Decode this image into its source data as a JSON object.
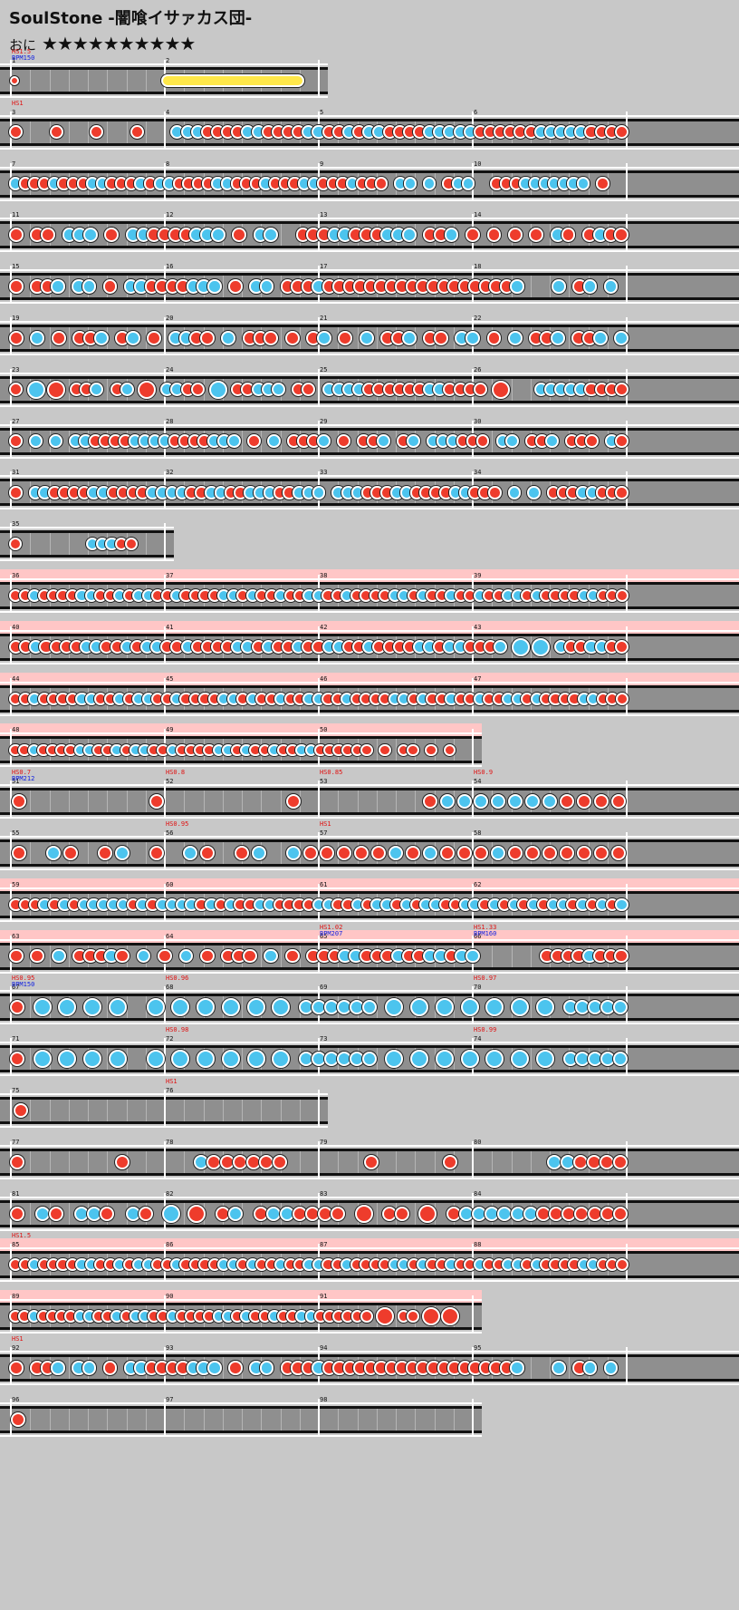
{
  "header": {
    "title": "SoulStone",
    "subtitle": "-闇喰イサァカス団-",
    "difficulty": "おに",
    "stars": "★★★★★★★★★★"
  },
  "colors": {
    "don": "#ee3c2c",
    "ka": "#4cc4ee",
    "lane": "#8f8f8f",
    "gogo": "#ffc6c6",
    "roll": "#ffe84a"
  },
  "rows": [
    {
      "measures": [
        1,
        2
      ],
      "events": [
        {
          "m": 0,
          "t": "HS1.5",
          "c": "hs"
        },
        {
          "m": 0,
          "t": "BPM150",
          "c": "bpm"
        }
      ],
      "notes": "D..........................................."
    },
    {
      "measures": [
        3,
        4,
        5,
        6
      ],
      "events": [
        {
          "m": 0,
          "t": "HS1",
          "c": "hs"
        }
      ],
      "notes": "D...D...D...D...KKKDDDDKKDDDDKKDDKDKKDDDDKKKKKDDDDDDKKKKKDDDD"
    },
    {
      "measures": [
        7,
        8,
        9,
        10
      ],
      "notes": "KDDDKDDDKKDDDKDKKDDDDKKDDDKDDDKKDDDKDDD.KK.K.DKK..DDDKKKKKKK.D.."
    },
    {
      "measures": [
        11,
        12,
        13,
        14
      ],
      "notes": "D.DD.KKK.D.KKDDDDKKK.D.KK..DDDKKDDDKKK.DDK.D.D.D.D.KD.DKDD"
    },
    {
      "measures": [
        15,
        16,
        17,
        18
      ],
      "notes": "D.DDK.KK.D.KKDDDDKKK.D.KK.DDDKDDDDDDDDDDDDDDDDDDK...K.DK.K."
    },
    {
      "measures": [
        19,
        20,
        21,
        22
      ],
      "notes": "D.K.D.DDK.DK.D.KKDD.K.DDD.D.DK.D.K.DDK.DD.KK.D.K.DDK.DDK.K"
    },
    {
      "measures": [
        23,
        24,
        25,
        26
      ],
      "notes": "D.K.D.DDK.DK.D.KKDD.K.DDKKK.DD.KKKKDDDDDDKKDDDD.D...KKKKKDDDD"
    },
    {
      "measures": [
        27,
        28,
        29,
        30
      ],
      "notes": "D.K.K.KKDDDDKKKKDDDDKKK.D.K.DDDK.D.DDK.DK.KKKDDD.KK.DDK.DDD.KD"
    },
    {
      "measures": [
        31,
        32,
        33,
        34
      ],
      "notes": "D.KKDDDDKKDDDDKKKKDDKKDDKKKDDKKK.KKKDDDKKDDDDKKDDD.K.K.DDDKKDDD"
    },
    {
      "measures": [
        35
      ],
      "notes": "D.......KKKDD..."
    },
    {
      "measures": [
        36,
        37,
        38,
        39
      ],
      "gogo": true,
      "notes": "DDKDDDDKKDDKDKKDDKDDDDKKDKDDKDDKKDDKDDDDKKDKDDKDDKDDKKDKDDDDKKDDD"
    },
    {
      "measures": [
        40,
        41,
        42,
        43
      ],
      "gogo": true,
      "notes": "DDKDDDDKKDDKDKKDDKDDDDKKDKDDKDDKKDDKDDDDKKDKKDDDK.K.K.KDDKKDD"
    },
    {
      "measures": [
        44,
        45,
        46,
        47
      ],
      "gogo": true,
      "notes": "DDKDDDDKKDDKDKKDDKDDDDKKDKDDKDDKKDDKDDDDKKDKDDKDDKDDKKDKDDDDKKDDD"
    },
    {
      "measures": [
        48,
        49,
        50
      ],
      "gogo": true,
      "notes": "DDKDDDDKKDDKDKKDDKDDDDKKDKDDKDDKKDDDDDD.D.DD.D.D.."
    },
    {
      "measures": [
        51,
        52,
        53,
        54
      ],
      "events": [
        {
          "m": 0,
          "t": "HS0.7",
          "c": "hs"
        },
        {
          "m": 0,
          "t": "BPM212",
          "c": "bpm"
        },
        {
          "m": 1,
          "t": "HS0.8",
          "c": "hs"
        },
        {
          "m": 2,
          "t": "HS0.85",
          "c": "hs"
        },
        {
          "m": 3,
          "t": "HS0.9",
          "c": "hs"
        }
      ],
      "notes": "D.......D.......D.......DKKKKKKKDDDD"
    },
    {
      "measures": [
        55,
        56,
        57,
        58
      ],
      "events": [
        {
          "m": 1,
          "t": "HS0.95",
          "c": "hs"
        },
        {
          "m": 2,
          "t": "HS1",
          "c": "hs"
        }
      ],
      "notes": "D.KD.DK.D.KD.DK.KDDDDDKDKDDDKDDDDDDD"
    },
    {
      "measures": [
        59,
        60,
        61,
        62
      ],
      "gogo": true,
      "notes": "DDDKDKDKKKKKDKDKKKKDKDKDDKKDDDDKKDDKDKKDKDKKDDKKDKDKDKDKKDKDKDK"
    },
    {
      "measures": [
        63,
        64,
        65,
        66
      ],
      "gogo": true,
      "events": [
        {
          "m": 2,
          "t": "HS1.02",
          "c": "hs"
        },
        {
          "m": 2,
          "t": "BPM207",
          "c": "bpm"
        },
        {
          "m": 3,
          "t": "HS1.33",
          "c": "hs"
        },
        {
          "m": 3,
          "t": "BPM160",
          "c": "bpm"
        }
      ],
      "notes": "D.D.K.DDDKD.K.D.K.D.DDD.K.D.DDDKKDDDKDDKKDKK......DDDDKDDD"
    },
    {
      "measures": [
        67,
        68,
        69,
        70
      ],
      "events": [
        {
          "m": 0,
          "t": "HS0.95",
          "c": "hs"
        },
        {
          "m": 0,
          "t": "BPM150",
          "c": "bpm"
        },
        {
          "m": 1,
          "t": "HS0.96",
          "c": "hs"
        },
        {
          "m": 3,
          "t": "HS0.97",
          "c": "hs"
        }
      ],
      "notes": "D.K.K.K.K..K.K.K.K.K.K.KKKKKK.K.K.K.K.K.K.K.KKKKK"
    },
    {
      "measures": [
        71,
        72,
        73,
        74
      ],
      "events": [
        {
          "m": 1,
          "t": "HS0.98",
          "c": "hs"
        },
        {
          "m": 3,
          "t": "HS0.99",
          "c": "hs"
        }
      ],
      "notes": "D.K.K.K.K..K.K.K.K.K.K.KKKKKK.K.K.K.K.K.K.K.KKKKK"
    },
    {
      "measures": [
        75,
        76
      ],
      "events": [
        {
          "m": 1,
          "t": "HS1",
          "c": "hs"
        }
      ],
      "notes": "D..............."
    },
    {
      "measures": [
        77,
        78,
        79,
        80
      ],
      "notes": "D.......D.....KDDDDDD......D.....D.......KKDDDD"
    },
    {
      "measures": [
        81,
        82,
        83,
        84
      ],
      "notes": "D.KD.KKD.KD.K.D.DK.DKKDDDD.D.DD.D.DKKKKKKDDDDDDD"
    },
    {
      "measures": [
        85,
        86,
        87,
        88
      ],
      "gogo": true,
      "events": [
        {
          "m": 0,
          "t": "HS1.5",
          "c": "hs"
        }
      ],
      "notes": "DDKDDDDKKDDKDKKDDKDDDDKKDKDDKDDKKDDKDDDDKKDKDDKDDKDDKKDKDDDDKKDDD"
    },
    {
      "measures": [
        89,
        90,
        91
      ],
      "gogo": true,
      "notes": "DDKDDDDKKDDKDKKDDKDDDDKKDKDDKDDKKDDDDDD.D.DD.D.D.."
    },
    {
      "measures": [
        92,
        93,
        94,
        95
      ],
      "events": [
        {
          "m": 0,
          "t": "HS1",
          "c": "hs"
        }
      ],
      "notes": "D.DDK.KK.D.KKDDDDKKK.D.KK.DDDKDDDDDDDDDDDDDDDDDDK...K.DK.K."
    },
    {
      "measures": [
        96,
        97,
        98
      ],
      "notes": "D..............................."
    }
  ]
}
